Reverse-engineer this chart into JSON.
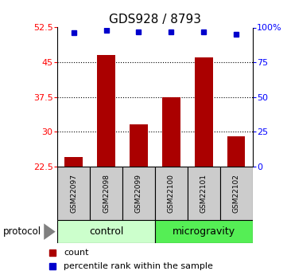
{
  "title": "GDS928 / 8793",
  "samples": [
    "GSM22097",
    "GSM22098",
    "GSM22099",
    "GSM22100",
    "GSM22101",
    "GSM22102"
  ],
  "counts": [
    24.5,
    46.5,
    31.5,
    37.5,
    46.0,
    29.0
  ],
  "percentile_ranks": [
    96,
    98,
    97,
    97,
    97,
    95
  ],
  "ylim_left": [
    22.5,
    52.5
  ],
  "ylim_right": [
    0,
    100
  ],
  "yticks_left": [
    22.5,
    30,
    37.5,
    45,
    52.5
  ],
  "ytick_labels_left": [
    "22.5",
    "30",
    "37.5",
    "45",
    "52.5"
  ],
  "yticks_right": [
    0,
    25,
    50,
    75,
    100
  ],
  "ytick_labels_right": [
    "0",
    "25",
    "50",
    "75",
    "100%"
  ],
  "grid_lines": [
    30,
    37.5,
    45
  ],
  "bar_color": "#aa0000",
  "dot_color": "#0000cc",
  "groups": [
    {
      "label": "control",
      "start": 0,
      "end": 3,
      "color": "#ccffcc"
    },
    {
      "label": "microgravity",
      "start": 3,
      "end": 6,
      "color": "#55ee55"
    }
  ],
  "sample_box_color": "#cccccc",
  "protocol_label": "protocol",
  "legend_count_label": "count",
  "legend_percentile_label": "percentile rank within the sample",
  "bar_width": 0.55,
  "title_fontsize": 11,
  "tick_fontsize": 8,
  "sample_fontsize": 6.5,
  "group_fontsize": 9,
  "legend_fontsize": 8
}
